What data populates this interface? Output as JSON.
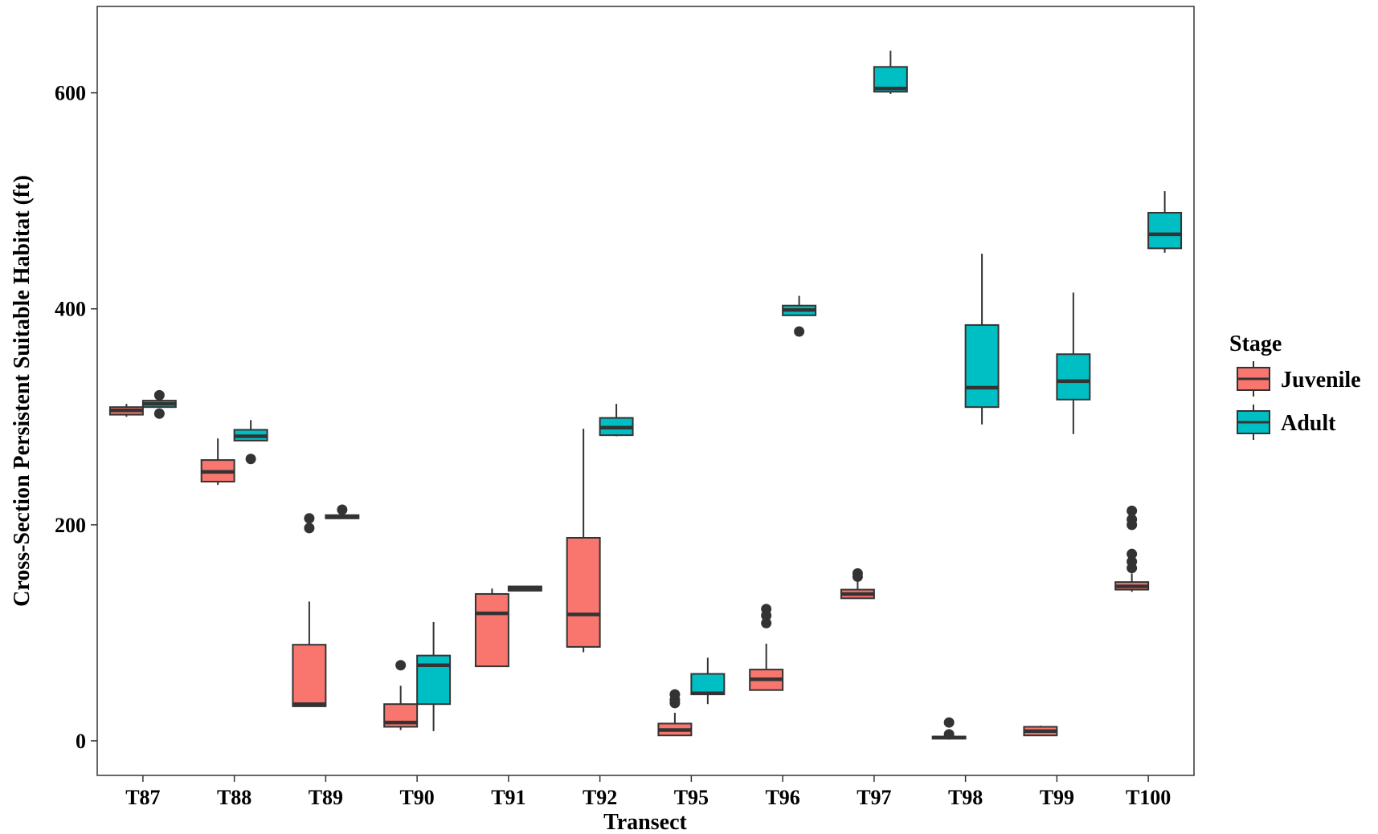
{
  "chart_data": {
    "type": "boxplot",
    "title": "",
    "xlabel": "Transect",
    "ylabel": "Cross-Section Persistent Suitable Habitat (ft)",
    "ylim": [
      -32,
      680
    ],
    "yticks": [
      0,
      200,
      400,
      600
    ],
    "grid": false,
    "legend": {
      "title": "Stage",
      "position": "right"
    },
    "categories": [
      "T87",
      "T88",
      "T89",
      "T90",
      "T91",
      "T92",
      "T95",
      "T96",
      "T97",
      "T98",
      "T99",
      "T100"
    ],
    "series": [
      {
        "name": "Juvenile",
        "color": "#F8766D",
        "boxes": [
          {
            "low": 300,
            "q1": 302,
            "median": 306,
            "q3": 309,
            "high": 312,
            "outliers": []
          },
          {
            "low": 237,
            "q1": 240,
            "median": 249,
            "q3": 260,
            "high": 280,
            "outliers": []
          },
          {
            "low": 32,
            "q1": 32,
            "median": 34,
            "q3": 89,
            "high": 129,
            "outliers": [
              197,
              206
            ]
          },
          {
            "low": 10,
            "q1": 13,
            "median": 17,
            "q3": 34,
            "high": 51,
            "outliers": [
              70
            ]
          },
          {
            "low": 69,
            "q1": 69,
            "median": 118,
            "q3": 136,
            "high": 141,
            "outliers": []
          },
          {
            "low": 82,
            "q1": 87,
            "median": 117,
            "q3": 188,
            "high": 289,
            "outliers": []
          },
          {
            "low": 5,
            "q1": 5,
            "median": 10,
            "q3": 16,
            "high": 26,
            "outliers": [
              35,
              38,
              43
            ]
          },
          {
            "low": 47,
            "q1": 47,
            "median": 57,
            "q3": 66,
            "high": 90,
            "outliers": [
              109,
              116,
              122
            ]
          },
          {
            "low": 132,
            "q1": 132,
            "median": 136,
            "q3": 140,
            "high": 148,
            "outliers": [
              152,
              155
            ]
          },
          {
            "low": 2,
            "q1": 2,
            "median": 3,
            "q3": 4,
            "high": 5,
            "outliers": [
              6,
              17
            ]
          },
          {
            "low": 5,
            "q1": 5,
            "median": 9,
            "q3": 13,
            "high": 14,
            "outliers": []
          },
          {
            "low": 138,
            "q1": 140,
            "median": 143,
            "q3": 147,
            "high": 155,
            "outliers": [
              160,
              166,
              173,
              200,
              205,
              213
            ]
          }
        ]
      },
      {
        "name": "Adult",
        "color": "#00BFC4",
        "boxes": [
          {
            "low": 309,
            "q1": 309,
            "median": 312,
            "q3": 315,
            "high": 315,
            "outliers": [
              303,
              320
            ]
          },
          {
            "low": 278,
            "q1": 278,
            "median": 282,
            "q3": 288,
            "high": 297,
            "outliers": [
              261
            ]
          },
          {
            "low": 206,
            "q1": 206,
            "median": 207,
            "q3": 209,
            "high": 210,
            "outliers": [
              214
            ]
          },
          {
            "low": 9,
            "q1": 34,
            "median": 70,
            "q3": 79,
            "high": 110,
            "outliers": []
          },
          {
            "low": 139,
            "q1": 139,
            "median": 141,
            "q3": 143,
            "high": 143,
            "outliers": []
          },
          {
            "low": 282,
            "q1": 283,
            "median": 290,
            "q3": 299,
            "high": 312,
            "outliers": []
          },
          {
            "low": 34,
            "q1": 43,
            "median": 44,
            "q3": 62,
            "high": 77,
            "outliers": []
          },
          {
            "low": 394,
            "q1": 394,
            "median": 399,
            "q3": 403,
            "high": 412,
            "outliers": [
              379
            ]
          },
          {
            "low": 599,
            "q1": 601,
            "median": 604,
            "q3": 624,
            "high": 639,
            "outliers": []
          },
          {
            "low": 293,
            "q1": 309,
            "median": 327,
            "q3": 385,
            "high": 451,
            "outliers": []
          },
          {
            "low": 284,
            "q1": 316,
            "median": 333,
            "q3": 358,
            "high": 415,
            "outliers": []
          },
          {
            "low": 452,
            "q1": 456,
            "median": 469,
            "q3": 489,
            "high": 509,
            "outliers": []
          }
        ]
      }
    ]
  }
}
